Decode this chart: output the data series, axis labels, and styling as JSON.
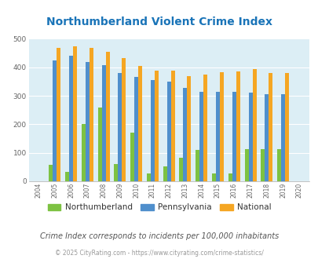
{
  "title": "Northumberland Violent Crime Index",
  "years": [
    2004,
    2005,
    2006,
    2007,
    2008,
    2009,
    2010,
    2011,
    2012,
    2013,
    2014,
    2015,
    2016,
    2017,
    2018,
    2019,
    2020
  ],
  "northumberland": [
    0,
    58,
    33,
    202,
    258,
    60,
    172,
    28,
    52,
    82,
    110,
    28,
    28,
    113,
    113,
    113,
    0
  ],
  "pennsylvania": [
    0,
    425,
    440,
    418,
    408,
    380,
    367,
    354,
    349,
    329,
    313,
    314,
    313,
    311,
    305,
    305,
    0
  ],
  "national": [
    0,
    469,
    474,
    467,
    455,
    432,
    405,
    389,
    388,
    368,
    376,
    383,
    386,
    395,
    380,
    380,
    0
  ],
  "color_green": "#7dc242",
  "color_blue": "#4f8fcc",
  "color_orange": "#f5a623",
  "background_color": "#dceef5",
  "ylim": [
    0,
    500
  ],
  "yticks": [
    0,
    100,
    200,
    300,
    400,
    500
  ],
  "subtitle": "Crime Index corresponds to incidents per 100,000 inhabitants",
  "footer": "© 2025 CityRating.com - https://www.cityrating.com/crime-statistics/",
  "legend_labels": [
    "Northumberland",
    "Pennsylvania",
    "National"
  ],
  "title_color": "#1a74b8",
  "subtitle_color": "#555555",
  "footer_color": "#999999"
}
